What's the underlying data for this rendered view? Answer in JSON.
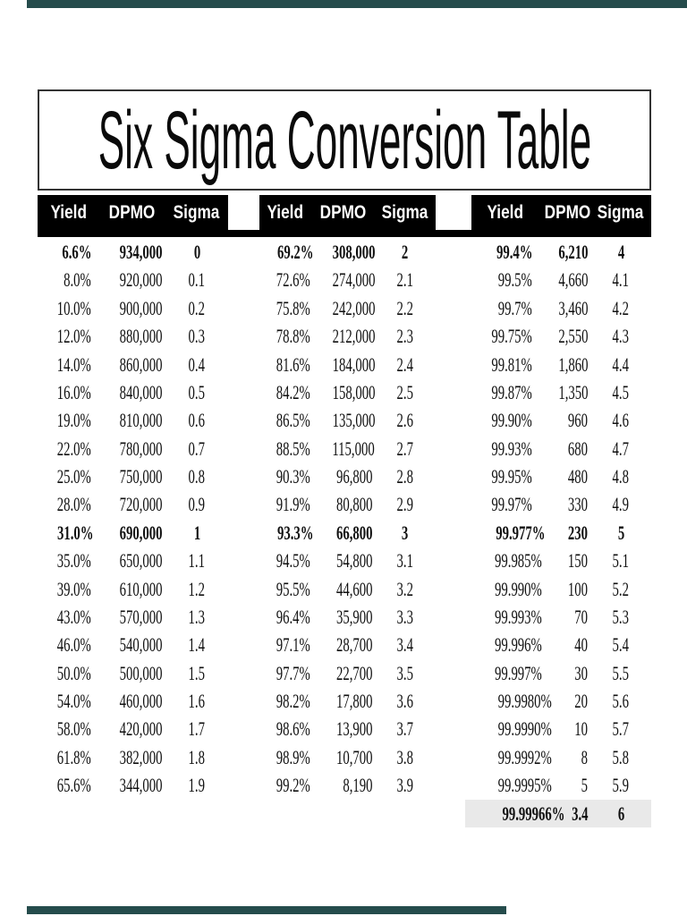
{
  "page": {
    "title": "Six Sigma Conversion Table"
  },
  "colors": {
    "header_bg": "#000000",
    "header_text": "#ffffff",
    "highlight_row_bg": "#e9e9e9",
    "edge_bar": "#254c4c",
    "text": "#101010"
  },
  "table": {
    "column_headers": [
      "Yield",
      "DPMO",
      "Sigma"
    ],
    "groups": [
      {
        "rows": [
          {
            "yield": "6.6%",
            "dpmo": "934,000",
            "sigma": "0",
            "bold": true
          },
          {
            "yield": "8.0%",
            "dpmo": "920,000",
            "sigma": "0.1",
            "bold": false
          },
          {
            "yield": "10.0%",
            "dpmo": "900,000",
            "sigma": "0.2",
            "bold": false
          },
          {
            "yield": "12.0%",
            "dpmo": "880,000",
            "sigma": "0.3",
            "bold": false
          },
          {
            "yield": "14.0%",
            "dpmo": "860,000",
            "sigma": "0.4",
            "bold": false
          },
          {
            "yield": "16.0%",
            "dpmo": "840,000",
            "sigma": "0.5",
            "bold": false
          },
          {
            "yield": "19.0%",
            "dpmo": "810,000",
            "sigma": "0.6",
            "bold": false
          },
          {
            "yield": "22.0%",
            "dpmo": "780,000",
            "sigma": "0.7",
            "bold": false
          },
          {
            "yield": "25.0%",
            "dpmo": "750,000",
            "sigma": "0.8",
            "bold": false
          },
          {
            "yield": "28.0%",
            "dpmo": "720,000",
            "sigma": "0.9",
            "bold": false
          },
          {
            "yield": "31.0%",
            "dpmo": "690,000",
            "sigma": "1",
            "bold": true
          },
          {
            "yield": "35.0%",
            "dpmo": "650,000",
            "sigma": "1.1",
            "bold": false
          },
          {
            "yield": "39.0%",
            "dpmo": "610,000",
            "sigma": "1.2",
            "bold": false
          },
          {
            "yield": "43.0%",
            "dpmo": "570,000",
            "sigma": "1.3",
            "bold": false
          },
          {
            "yield": "46.0%",
            "dpmo": "540,000",
            "sigma": "1.4",
            "bold": false
          },
          {
            "yield": "50.0%",
            "dpmo": "500,000",
            "sigma": "1.5",
            "bold": false
          },
          {
            "yield": "54.0%",
            "dpmo": "460,000",
            "sigma": "1.6",
            "bold": false
          },
          {
            "yield": "58.0%",
            "dpmo": "420,000",
            "sigma": "1.7",
            "bold": false
          },
          {
            "yield": "61.8%",
            "dpmo": "382,000",
            "sigma": "1.8",
            "bold": false
          },
          {
            "yield": "65.6%",
            "dpmo": "344,000",
            "sigma": "1.9",
            "bold": false
          }
        ]
      },
      {
        "rows": [
          {
            "yield": "69.2%",
            "dpmo": "308,000",
            "sigma": "2",
            "bold": true
          },
          {
            "yield": "72.6%",
            "dpmo": "274,000",
            "sigma": "2.1",
            "bold": false
          },
          {
            "yield": "75.8%",
            "dpmo": "242,000",
            "sigma": "2.2",
            "bold": false
          },
          {
            "yield": "78.8%",
            "dpmo": "212,000",
            "sigma": "2.3",
            "bold": false
          },
          {
            "yield": "81.6%",
            "dpmo": "184,000",
            "sigma": "2.4",
            "bold": false
          },
          {
            "yield": "84.2%",
            "dpmo": "158,000",
            "sigma": "2.5",
            "bold": false
          },
          {
            "yield": "86.5%",
            "dpmo": "135,000",
            "sigma": "2.6",
            "bold": false
          },
          {
            "yield": "88.5%",
            "dpmo": "115,000",
            "sigma": "2.7",
            "bold": false
          },
          {
            "yield": "90.3%",
            "dpmo": "96,800",
            "sigma": "2.8",
            "bold": false
          },
          {
            "yield": "91.9%",
            "dpmo": "80,800",
            "sigma": "2.9",
            "bold": false
          },
          {
            "yield": "93.3%",
            "dpmo": "66,800",
            "sigma": "3",
            "bold": true
          },
          {
            "yield": "94.5%",
            "dpmo": "54,800",
            "sigma": "3.1",
            "bold": false
          },
          {
            "yield": "95.5%",
            "dpmo": "44,600",
            "sigma": "3.2",
            "bold": false
          },
          {
            "yield": "96.4%",
            "dpmo": "35,900",
            "sigma": "3.3",
            "bold": false
          },
          {
            "yield": "97.1%",
            "dpmo": "28,700",
            "sigma": "3.4",
            "bold": false
          },
          {
            "yield": "97.7%",
            "dpmo": "22,700",
            "sigma": "3.5",
            "bold": false
          },
          {
            "yield": "98.2%",
            "dpmo": "17,800",
            "sigma": "3.6",
            "bold": false
          },
          {
            "yield": "98.6%",
            "dpmo": "13,900",
            "sigma": "3.7",
            "bold": false
          },
          {
            "yield": "98.9%",
            "dpmo": "10,700",
            "sigma": "3.8",
            "bold": false
          },
          {
            "yield": "99.2%",
            "dpmo": "8,190",
            "sigma": "3.9",
            "bold": false
          }
        ]
      },
      {
        "rows": [
          {
            "yield": "99.4%",
            "dpmo": "6,210",
            "sigma": "4",
            "bold": true
          },
          {
            "yield": "99.5%",
            "dpmo": "4,660",
            "sigma": "4.1",
            "bold": false
          },
          {
            "yield": "99.7%",
            "dpmo": "3,460",
            "sigma": "4.2",
            "bold": false
          },
          {
            "yield": "99.75%",
            "dpmo": "2,550",
            "sigma": "4.3",
            "bold": false
          },
          {
            "yield": "99.81%",
            "dpmo": "1,860",
            "sigma": "4.4",
            "bold": false
          },
          {
            "yield": "99.87%",
            "dpmo": "1,350",
            "sigma": "4.5",
            "bold": false
          },
          {
            "yield": "99.90%",
            "dpmo": "960",
            "sigma": "4.6",
            "bold": false
          },
          {
            "yield": "99.93%",
            "dpmo": "680",
            "sigma": "4.7",
            "bold": false
          },
          {
            "yield": "99.95%",
            "dpmo": "480",
            "sigma": "4.8",
            "bold": false
          },
          {
            "yield": "99.97%",
            "dpmo": "330",
            "sigma": "4.9",
            "bold": false
          },
          {
            "yield": "99.977%",
            "dpmo": "230",
            "sigma": "5",
            "bold": true
          },
          {
            "yield": "99.985%",
            "dpmo": "150",
            "sigma": "5.1",
            "bold": false
          },
          {
            "yield": "99.990%",
            "dpmo": "100",
            "sigma": "5.2",
            "bold": false
          },
          {
            "yield": "99.993%",
            "dpmo": "70",
            "sigma": "5.3",
            "bold": false
          },
          {
            "yield": "99.996%",
            "dpmo": "40",
            "sigma": "5.4",
            "bold": false
          },
          {
            "yield": "99.997%",
            "dpmo": "30",
            "sigma": "5.5",
            "bold": false
          },
          {
            "yield": "99.9980%",
            "dpmo": "20",
            "sigma": "5.6",
            "bold": false
          },
          {
            "yield": "99.9990%",
            "dpmo": "10",
            "sigma": "5.7",
            "bold": false
          },
          {
            "yield": "99.9992%",
            "dpmo": "8",
            "sigma": "5.8",
            "bold": false
          },
          {
            "yield": "99.9995%",
            "dpmo": "5",
            "sigma": "5.9",
            "bold": false
          },
          {
            "yield": "99.99966%",
            "dpmo": "3.4",
            "sigma": "6",
            "bold": true,
            "highlight": true
          }
        ]
      }
    ]
  }
}
